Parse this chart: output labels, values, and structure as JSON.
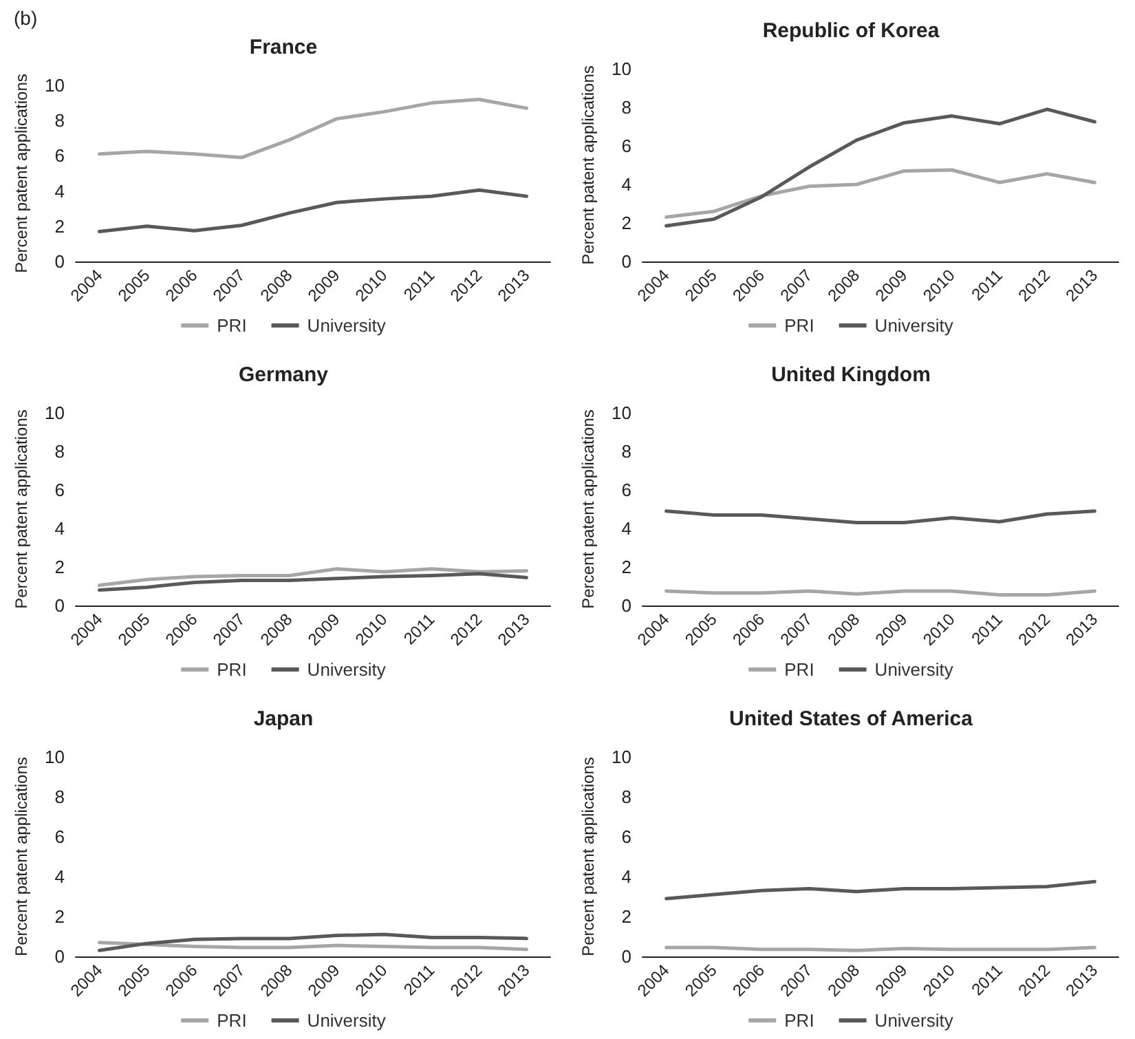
{
  "chart_data": [
    {
      "type": "line",
      "title": "France",
      "ylabel": "Percent patent applications",
      "annotations": [
        "(b)"
      ],
      "categories": [
        "2004",
        "2005",
        "2006",
        "2007",
        "2008",
        "2009",
        "2010",
        "2011",
        "2012",
        "2013"
      ],
      "ylim": [
        0,
        10
      ],
      "yticks": [
        0,
        2,
        4,
        6,
        8,
        10
      ],
      "grid": false,
      "legend": "bottom",
      "marker": "none",
      "line_style": "solid",
      "series": [
        {
          "name": "PRI",
          "color": "#a6a6a6",
          "values": [
            6.1,
            6.25,
            6.1,
            5.9,
            6.9,
            8.1,
            8.5,
            9.0,
            9.2,
            8.7
          ]
        },
        {
          "name": "University",
          "color": "#595959",
          "values": [
            1.7,
            2.0,
            1.75,
            2.05,
            2.75,
            3.35,
            3.55,
            3.7,
            4.05,
            3.7
          ]
        }
      ]
    },
    {
      "type": "line",
      "title": "Republic of Korea",
      "ylabel": "Percent patent applications",
      "categories": [
        "2004",
        "2005",
        "2006",
        "2007",
        "2008",
        "2009",
        "2010",
        "2011",
        "2012",
        "2013"
      ],
      "ylim": [
        0,
        10
      ],
      "yticks": [
        0,
        2,
        4,
        6,
        8,
        10
      ],
      "grid": false,
      "legend": "bottom",
      "marker": "none",
      "line_style": "solid",
      "series": [
        {
          "name": "PRI",
          "color": "#a6a6a6",
          "values": [
            2.3,
            2.6,
            3.4,
            3.9,
            4.0,
            4.7,
            4.75,
            4.1,
            4.55,
            4.1
          ]
        },
        {
          "name": "University",
          "color": "#595959",
          "values": [
            1.85,
            2.2,
            3.35,
            4.9,
            6.3,
            7.2,
            7.55,
            7.15,
            7.9,
            7.25
          ]
        }
      ]
    },
    {
      "type": "line",
      "title": "Germany",
      "ylabel": "Percent patent applications",
      "categories": [
        "2004",
        "2005",
        "2006",
        "2007",
        "2008",
        "2009",
        "2010",
        "2011",
        "2012",
        "2013"
      ],
      "ylim": [
        0,
        10
      ],
      "yticks": [
        0,
        2,
        4,
        6,
        8,
        10
      ],
      "grid": false,
      "legend": "bottom",
      "marker": "none",
      "line_style": "solid",
      "series": [
        {
          "name": "PRI",
          "color": "#a6a6a6",
          "values": [
            1.05,
            1.35,
            1.5,
            1.55,
            1.55,
            1.9,
            1.75,
            1.9,
            1.75,
            1.8
          ]
        },
        {
          "name": "University",
          "color": "#595959",
          "values": [
            0.8,
            0.95,
            1.2,
            1.3,
            1.3,
            1.4,
            1.5,
            1.55,
            1.65,
            1.45
          ]
        }
      ]
    },
    {
      "type": "line",
      "title": "United Kingdom",
      "ylabel": "Percent patent applications",
      "categories": [
        "2004",
        "2005",
        "2006",
        "2007",
        "2008",
        "2009",
        "2010",
        "2011",
        "2012",
        "2013"
      ],
      "ylim": [
        0,
        10
      ],
      "yticks": [
        0,
        2,
        4,
        6,
        8,
        10
      ],
      "grid": false,
      "legend": "bottom",
      "marker": "none",
      "line_style": "solid",
      "series": [
        {
          "name": "PRI",
          "color": "#a6a6a6",
          "values": [
            0.75,
            0.65,
            0.65,
            0.75,
            0.6,
            0.75,
            0.75,
            0.55,
            0.55,
            0.75
          ]
        },
        {
          "name": "University",
          "color": "#595959",
          "values": [
            4.9,
            4.7,
            4.7,
            4.5,
            4.3,
            4.3,
            4.55,
            4.35,
            4.75,
            4.9
          ]
        }
      ]
    },
    {
      "type": "line",
      "title": "Japan",
      "ylabel": "Percent patent applications",
      "categories": [
        "2004",
        "2005",
        "2006",
        "2007",
        "2008",
        "2009",
        "2010",
        "2011",
        "2012",
        "2013"
      ],
      "ylim": [
        0,
        10
      ],
      "yticks": [
        0,
        2,
        4,
        6,
        8,
        10
      ],
      "grid": false,
      "legend": "bottom",
      "marker": "none",
      "line_style": "solid",
      "series": [
        {
          "name": "PRI",
          "color": "#a6a6a6",
          "values": [
            0.7,
            0.6,
            0.5,
            0.45,
            0.45,
            0.55,
            0.5,
            0.45,
            0.45,
            0.35
          ]
        },
        {
          "name": "University",
          "color": "#595959",
          "values": [
            0.3,
            0.65,
            0.85,
            0.9,
            0.9,
            1.05,
            1.1,
            0.95,
            0.95,
            0.9
          ]
        }
      ]
    },
    {
      "type": "line",
      "title": "United States of America",
      "ylabel": "Percent patent applications",
      "categories": [
        "2004",
        "2005",
        "2006",
        "2007",
        "2008",
        "2009",
        "2010",
        "2011",
        "2012",
        "2013"
      ],
      "ylim": [
        0,
        10
      ],
      "yticks": [
        0,
        2,
        4,
        6,
        8,
        10
      ],
      "grid": false,
      "legend": "bottom",
      "marker": "none",
      "line_style": "solid",
      "series": [
        {
          "name": "PRI",
          "color": "#a6a6a6",
          "values": [
            0.45,
            0.45,
            0.35,
            0.35,
            0.3,
            0.4,
            0.35,
            0.35,
            0.35,
            0.45
          ]
        },
        {
          "name": "University",
          "color": "#595959",
          "values": [
            2.9,
            3.1,
            3.3,
            3.4,
            3.25,
            3.4,
            3.4,
            3.45,
            3.5,
            3.75
          ]
        }
      ]
    }
  ]
}
